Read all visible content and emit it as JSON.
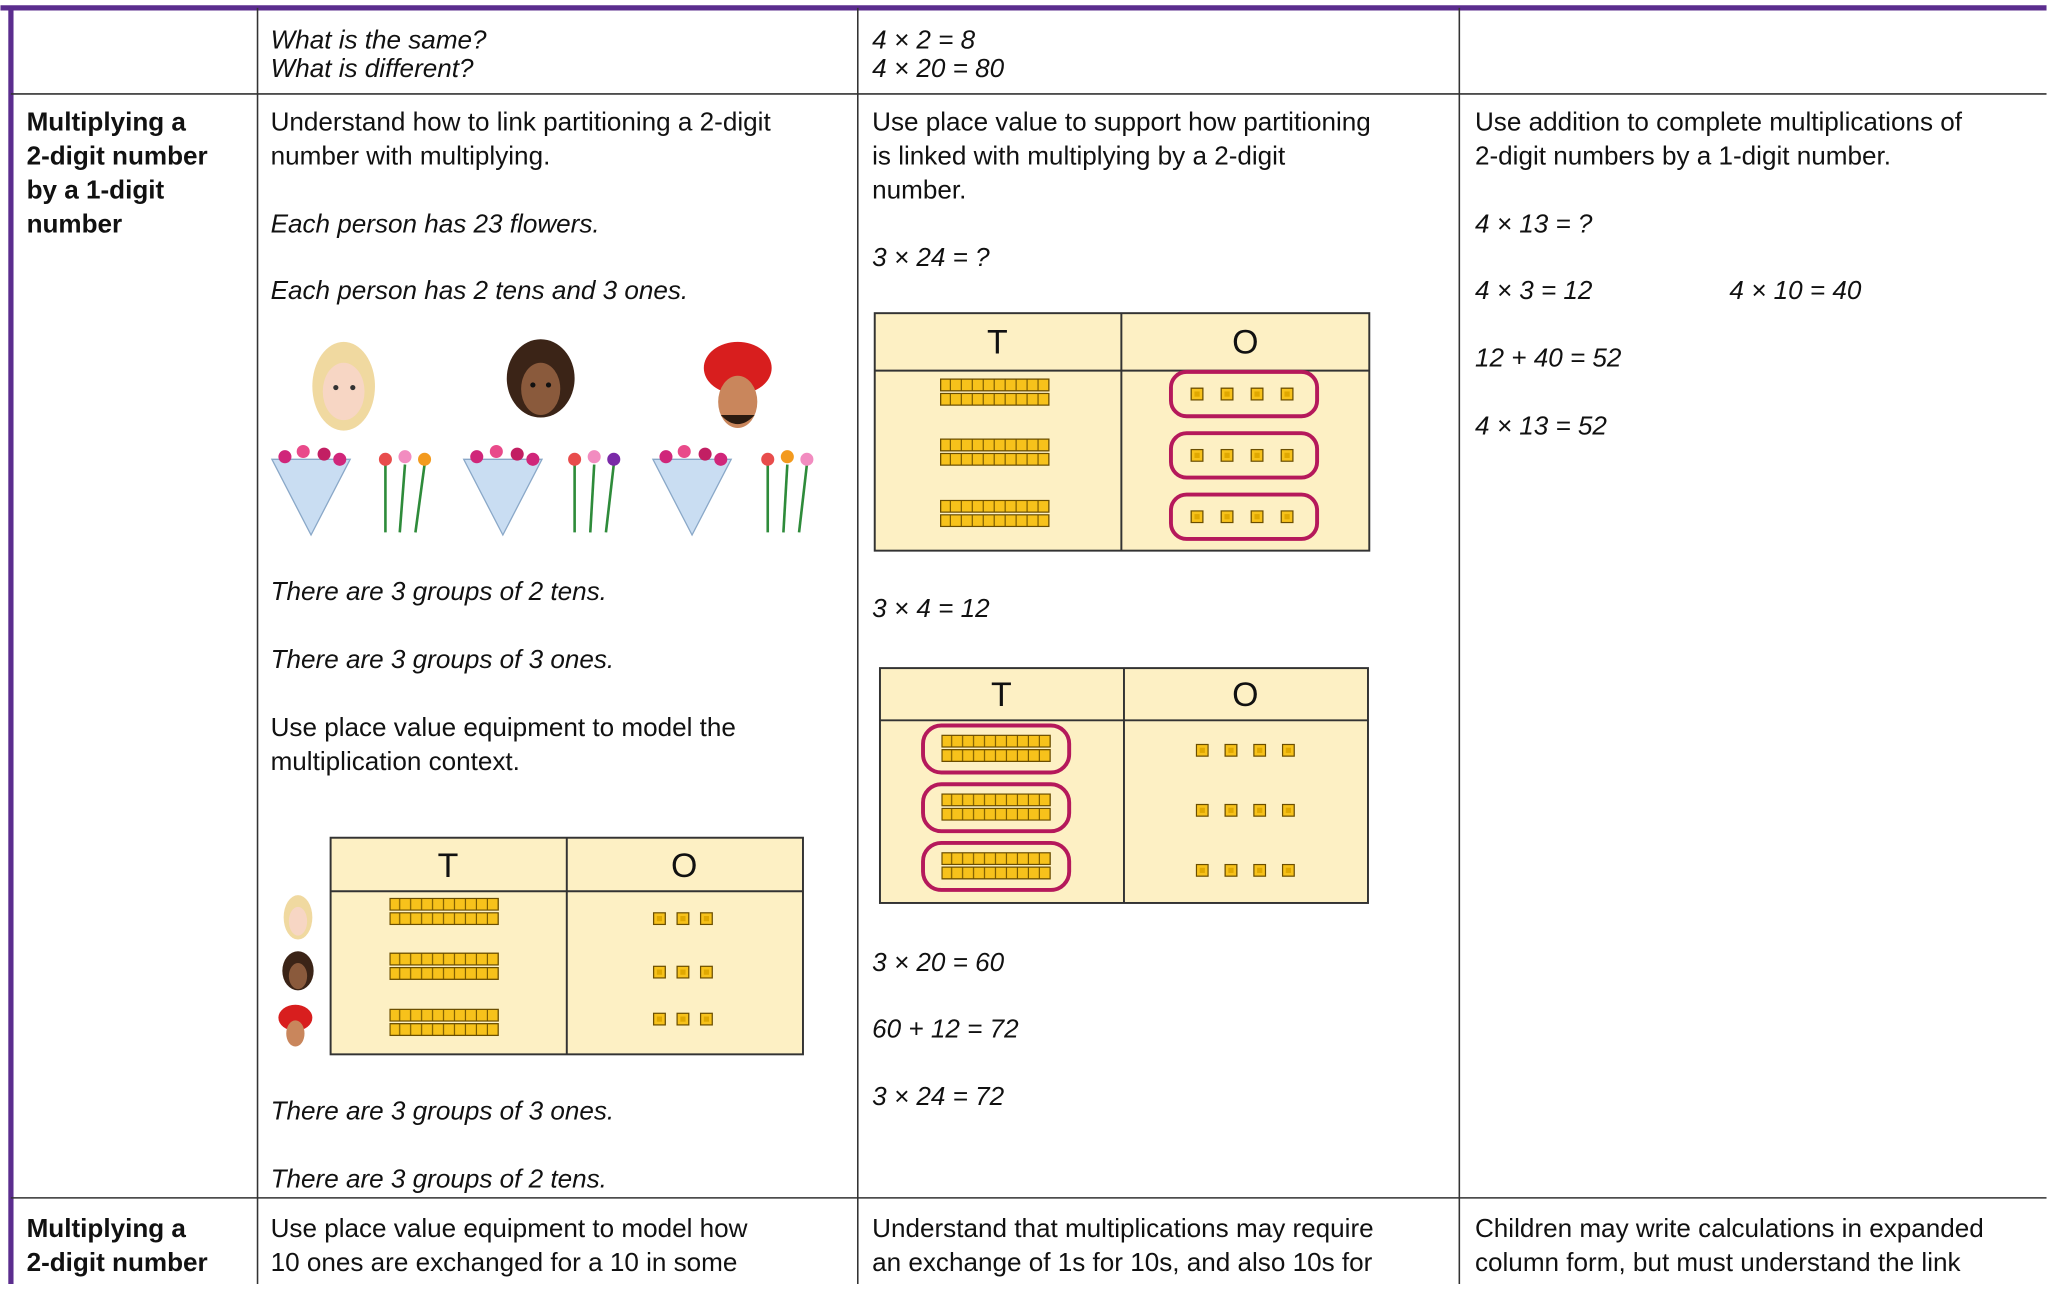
{
  "rows": [
    {
      "col2": [
        "What is the same?",
        "What is different?"
      ],
      "col3": [
        "4 × 2 = 8",
        "4 × 20 = 80"
      ]
    },
    {
      "heading": [
        "Multiplying a",
        "2-digit number",
        "by a 1-digit",
        "number"
      ],
      "col2": {
        "intro": [
          "Understand how to link partitioning a 2-digit",
          "number with multiplying."
        ],
        "notes": [
          "Each person has 23 flowers.",
          "Each person has 2 tens and 3 ones.",
          "There are 3 groups of 2 tens.",
          "There are 3 groups of 3 ones."
        ],
        "model": [
          "Use place value equipment to model the",
          "multiplication context."
        ],
        "table_headers": [
          "T",
          "O"
        ],
        "after": [
          "There are 3 groups of 3 ones.",
          "There are 3 groups of 2 tens."
        ]
      },
      "col3": {
        "intro": [
          "Use place value to support how partitioning",
          "is linked with multiplying by a 2-digit",
          "number."
        ],
        "question": "3 × 24 = ?",
        "table1_headers": [
          "T",
          "O"
        ],
        "step1": "3 × 4 = 12",
        "table2_headers": [
          "T",
          "O"
        ],
        "steps": [
          "3 × 20 = 60",
          "60 + 12 = 72",
          "3 × 24 = 72"
        ]
      },
      "col4": {
        "intro": [
          "Use addition to complete multiplications of",
          "2-digit numbers by a 1-digit number."
        ],
        "question": "4 × 13 = ?",
        "parts": [
          "4 × 3 = 12",
          "4 × 10 = 40"
        ],
        "sum": "12 + 40 = 52",
        "answer": "4 × 13 = 52"
      }
    },
    {
      "heading": [
        "Multiplying a",
        "2-digit number"
      ],
      "col2": [
        "Use place value equipment to model how",
        "10 ones are exchanged for a 10 in some"
      ],
      "col3": [
        "Understand that multiplications may require",
        "an exchange of 1s for 10s, and also 10s for"
      ],
      "col4": [
        "Children may write calculations in expanded",
        "column form, but must understand the link"
      ]
    }
  ]
}
